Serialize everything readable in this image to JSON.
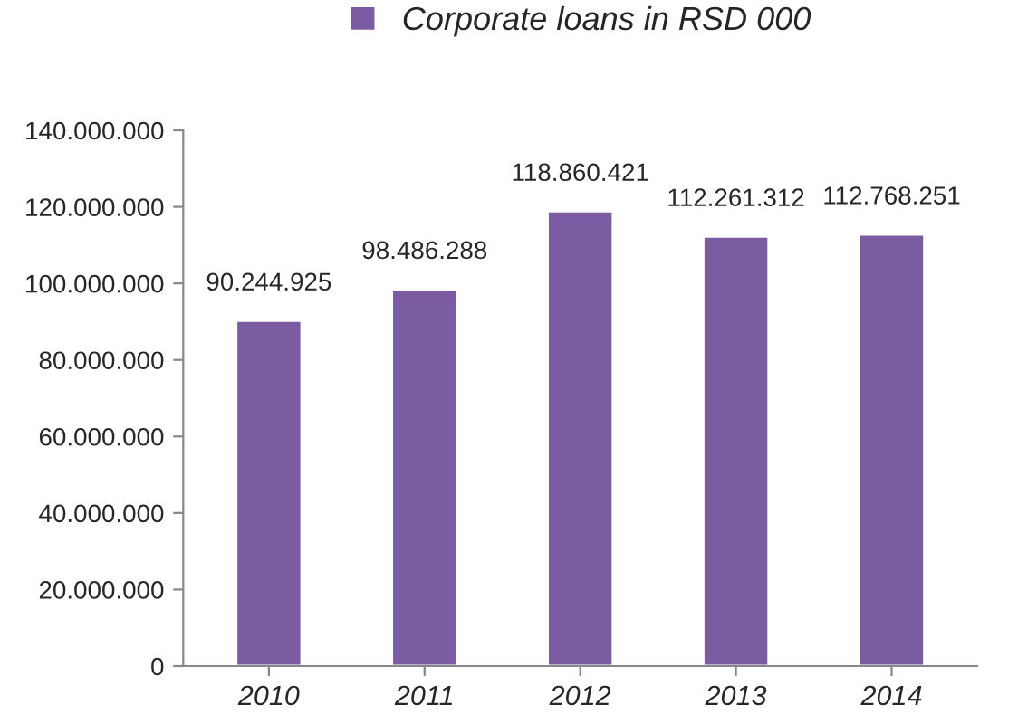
{
  "chart_data": {
    "type": "bar",
    "categories": [
      "2010",
      "2011",
      "2012",
      "2013",
      "2014"
    ],
    "series": [
      {
        "name": "Corporate loans in RSD 000",
        "color": "#7b5ca3",
        "values": [
          90244925,
          98486288,
          118860421,
          112261312,
          112768251
        ]
      }
    ],
    "value_labels": [
      "90.244.925",
      "98.486.288",
      "118.860.421",
      "112.261.312",
      "112.768.251"
    ],
    "ylim": [
      0,
      140000000
    ],
    "yticks": [
      {
        "value": 0,
        "label": "0"
      },
      {
        "value": 20000000,
        "label": "20.000.000"
      },
      {
        "value": 40000000,
        "label": "40.000.000"
      },
      {
        "value": 60000000,
        "label": "60.000.000"
      },
      {
        "value": 80000000,
        "label": "80.000.000"
      },
      {
        "value": 100000000,
        "label": "100.000.000"
      },
      {
        "value": 120000000,
        "label": "120.000.000"
      },
      {
        "value": 140000000,
        "label": "140.000.000"
      }
    ],
    "grid": false,
    "legend": "top"
  }
}
